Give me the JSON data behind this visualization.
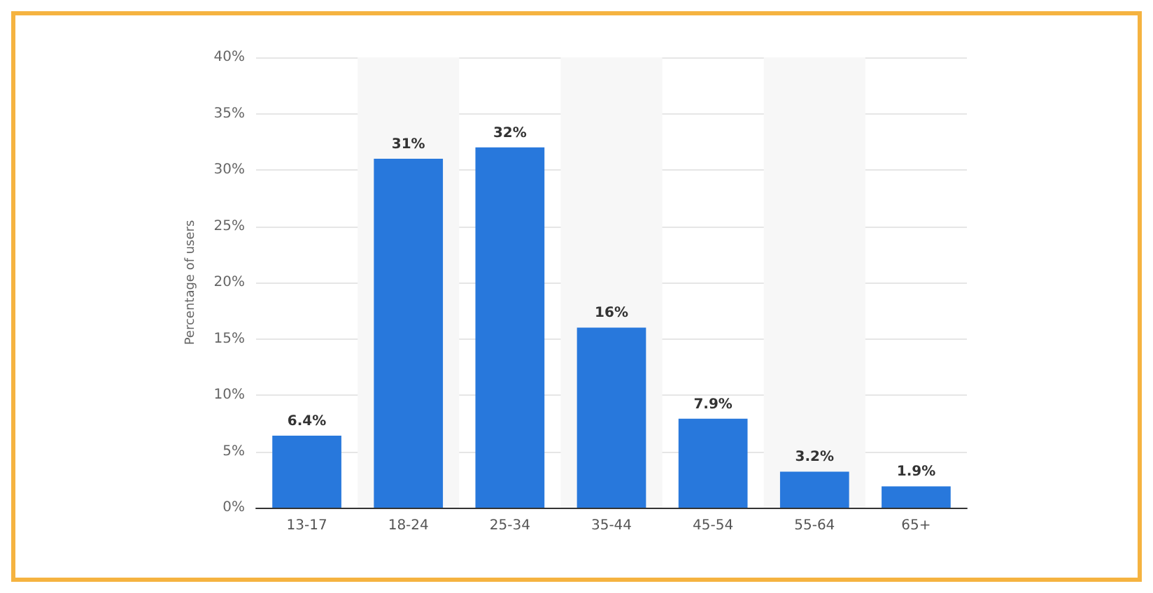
{
  "chart_data": {
    "type": "bar",
    "ylabel": "Percentage of users",
    "categories": [
      "13-17",
      "18-24",
      "25-34",
      "35-44",
      "45-54",
      "55-64",
      "65+"
    ],
    "values": [
      6.4,
      31,
      32,
      16,
      7.9,
      3.2,
      1.9
    ],
    "value_labels": [
      "6.4%",
      "31%",
      "32%",
      "16%",
      "7.9%",
      "3.2%",
      "1.9%"
    ],
    "color": "#2878dc",
    "ylim": [
      0,
      40
    ],
    "yticks": [
      {
        "value": 0,
        "label": "0%"
      },
      {
        "value": 5,
        "label": "5%"
      },
      {
        "value": 10,
        "label": "10%"
      },
      {
        "value": 15,
        "label": "15%"
      },
      {
        "value": 20,
        "label": "20%"
      },
      {
        "value": 25,
        "label": "25%"
      },
      {
        "value": 30,
        "label": "30%"
      },
      {
        "value": 35,
        "label": "35%"
      },
      {
        "value": 40,
        "label": "40%"
      }
    ],
    "grid": "y"
  }
}
